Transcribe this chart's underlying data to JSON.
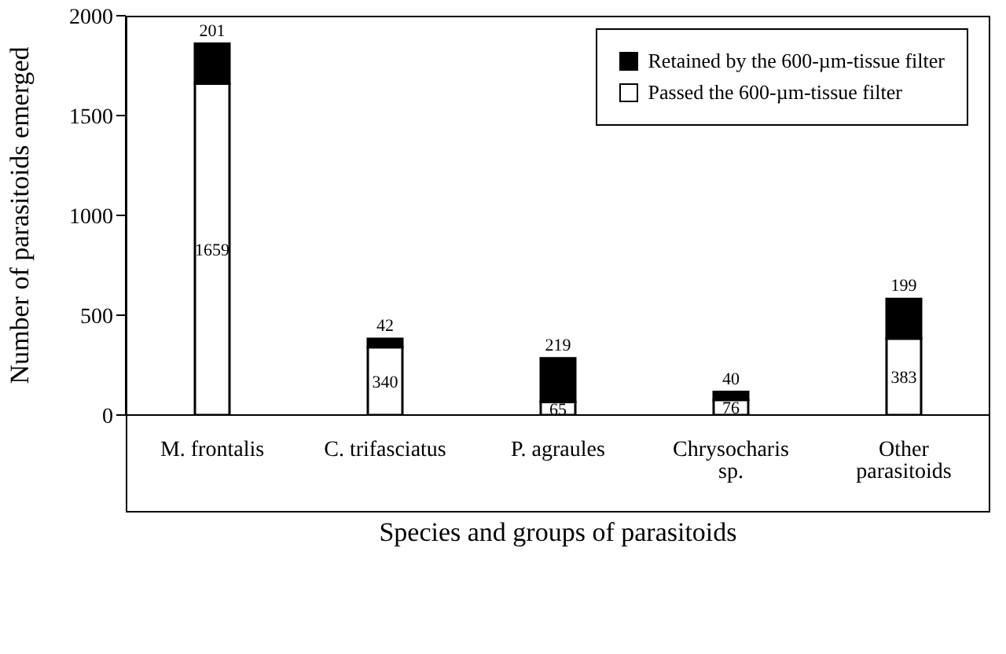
{
  "chart_data": {
    "type": "bar",
    "stacked": true,
    "xlabel": "Species and groups of parasitoids",
    "ylabel": "Number of parasitoids emerged",
    "categories": [
      "M. frontalis",
      "C. trifasciatus",
      "P. agraules",
      "Chrysocharis sp.",
      "Other parasitoids"
    ],
    "series": [
      {
        "name": "Passed the 600-µm-tissue filter",
        "color": "#ffffff",
        "values": [
          1659,
          340,
          65,
          76,
          383
        ]
      },
      {
        "name": "Retained by the 600-µm-tissue filter",
        "color": "#000000",
        "values": [
          201,
          42,
          219,
          40,
          199
        ]
      }
    ],
    "ylim": [
      0,
      2000
    ],
    "yticks": [
      0,
      500,
      1000,
      1500,
      2000
    ],
    "grid": false,
    "legend": "top right",
    "data_labels": true
  }
}
